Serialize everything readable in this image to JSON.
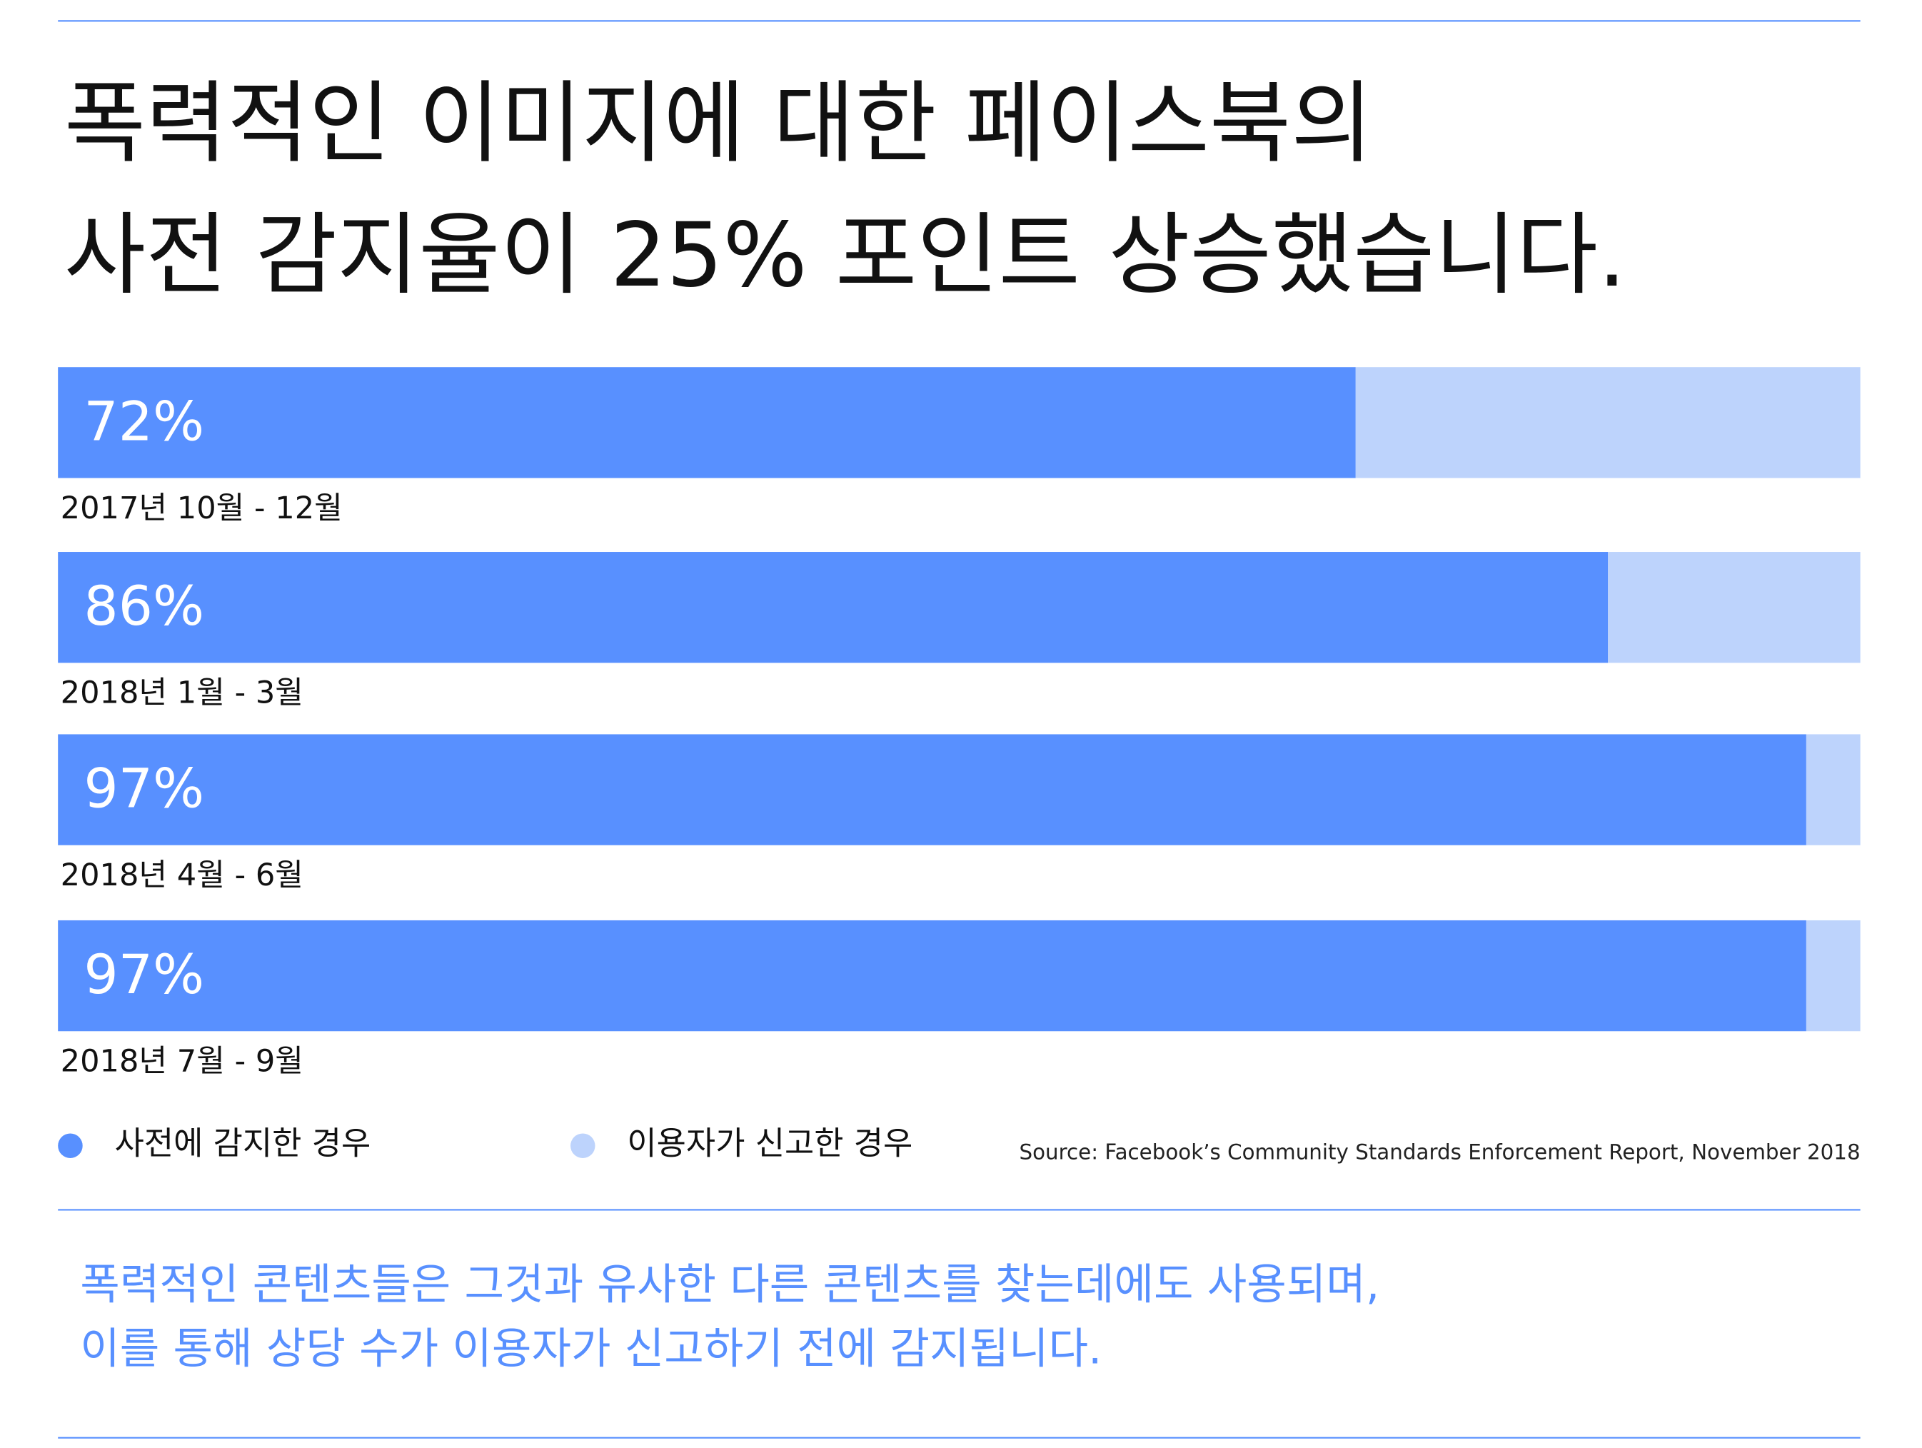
{
  "chart_data": {
    "type": "stacked-barh",
    "title": [
      "폭력적인 이미지에 대한 페이스북의",
      "사전 감지율이 25% 포인트 상승했습니다."
    ],
    "categories": [
      "2017년 10월 - 12월",
      "2018년 1월 - 3월",
      "2018년 4월 - 6월",
      "2018년 7월 - 9월"
    ],
    "series": [
      {
        "name": "사전에 감지한 경우",
        "color": "#5890ff",
        "values": [
          72,
          86,
          97,
          97
        ],
        "value_labels": [
          "72%",
          "86%",
          "97%",
          "97%"
        ]
      },
      {
        "name": "이용자가 신고한 경우",
        "color": "#bdd3fc",
        "values": [
          28,
          14,
          3,
          3
        ]
      }
    ],
    "xlim": [
      0,
      100
    ],
    "source": "Source: Facebook’s Community Standards Enforcement Report, November 2018",
    "caption": [
      "폭력적인 콘텐츠들은 그것과 유사한 다른 콘텐츠를 찾는데에도 사용되며,",
      "이를 통해 상당 수가 이용자가 신고하기 전에 감지됩니다."
    ]
  }
}
